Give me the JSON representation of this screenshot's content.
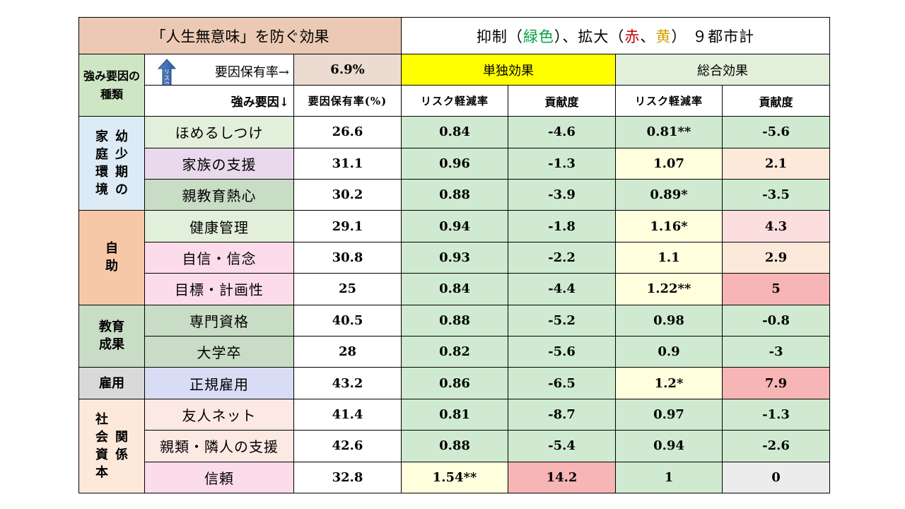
{
  "title_left": "「人生無意味」を防ぐ効果",
  "title_right": {
    "part1": "抑制（",
    "green": "緑色",
    "part2": "）、拡大（",
    "red": "赤",
    "part3": "、",
    "yellow": "黄",
    "part4": "） ９都市計"
  },
  "colors": {
    "green_text": "#00a040",
    "red_text": "#c00000",
    "yellow_text": "#d4a000"
  },
  "header": {
    "kind_label": "強み要因の種類",
    "arrow_text": "リスク軽減",
    "rate_label": "要因保有率→",
    "rate_value": "6.9%",
    "single_effect": "単独効果",
    "total_effect": "総合効果",
    "factor_label": "強み要因↓",
    "col_rate": "要因保有率(%)",
    "col_risk1": "リスク軽減率",
    "col_contrib1": "貢献度",
    "col_risk2": "リスク軽減率",
    "col_contrib2": "貢献度"
  },
  "categories": {
    "family": [
      "家庭環境",
      "幼少期の"
    ],
    "self": "自助",
    "edu": [
      "教育成果"
    ],
    "employ": "雇用",
    "social": [
      "社会資本",
      "関係"
    ]
  },
  "rows": [
    {
      "factor": "ほめるしつけ",
      "rate": "26.6",
      "risk1": "0.84",
      "contrib1": "-4.6",
      "risk2": "0.81**",
      "contrib2": "-5.6"
    },
    {
      "factor": "家族の支援",
      "rate": "31.1",
      "risk1": "0.96",
      "contrib1": "-1.3",
      "risk2": "1.07",
      "contrib2": "2.1"
    },
    {
      "factor": "親教育熱心",
      "rate": "30.2",
      "risk1": "0.88",
      "contrib1": "-3.9",
      "risk2": "0.89*",
      "contrib2": "-3.5"
    },
    {
      "factor": "健康管理",
      "rate": "29.1",
      "risk1": "0.94",
      "contrib1": "-1.8",
      "risk2": "1.16*",
      "contrib2": "4.3"
    },
    {
      "factor": "自信・信念",
      "rate": "30.8",
      "risk1": "0.93",
      "contrib1": "-2.2",
      "risk2": "1.1",
      "contrib2": "2.9"
    },
    {
      "factor": "目標・計画性",
      "rate": "25",
      "risk1": "0.84",
      "contrib1": "-4.4",
      "risk2": "1.22**",
      "contrib2": "5"
    },
    {
      "factor": "専門資格",
      "rate": "40.5",
      "risk1": "0.88",
      "contrib1": "-5.2",
      "risk2": "0.98",
      "contrib2": "-0.8"
    },
    {
      "factor": "大学卒",
      "rate": "28",
      "risk1": "0.82",
      "contrib1": "-5.6",
      "risk2": "0.9",
      "contrib2": "-3"
    },
    {
      "factor": "正規雇用",
      "rate": "43.2",
      "risk1": "0.86",
      "contrib1": "-6.5",
      "risk2": "1.2*",
      "contrib2": "7.9"
    },
    {
      "factor": "友人ネット",
      "rate": "41.4",
      "risk1": "0.81",
      "contrib1": "-8.7",
      "risk2": "0.97",
      "contrib2": "-1.3"
    },
    {
      "factor": "親類・隣人の支援",
      "rate": "42.6",
      "risk1": "0.88",
      "contrib1": "-5.4",
      "risk2": "0.94",
      "contrib2": "-2.6"
    },
    {
      "factor": "信頼",
      "rate": "32.8",
      "risk1": "1.54**",
      "contrib1": "14.2",
      "risk2": "1",
      "contrib2": "0"
    }
  ]
}
